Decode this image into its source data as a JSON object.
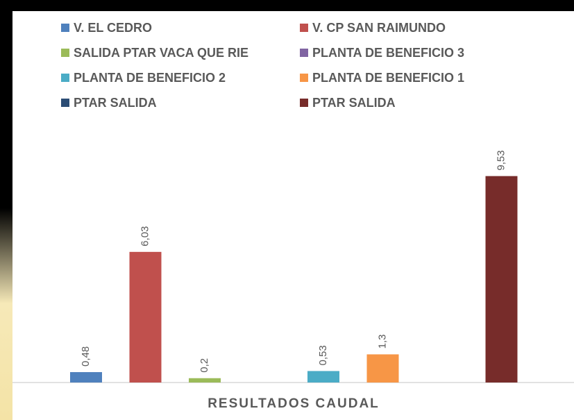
{
  "chart_data": {
    "type": "bar",
    "categories": [
      "RESULTADOS CAUDAL"
    ],
    "series": [
      {
        "name": "V. EL CEDRO",
        "color": "#4f81bd",
        "values": [
          0.48
        ],
        "value_labels": [
          "0,48"
        ]
      },
      {
        "name": "V. CP SAN RAIMUNDO",
        "color": "#c0504d",
        "values": [
          6.03
        ],
        "value_labels": [
          "6,03"
        ]
      },
      {
        "name": "SALIDA PTAR VACA QUE RIE",
        "color": "#9bbb59",
        "values": [
          0.2
        ],
        "value_labels": [
          "0,2"
        ]
      },
      {
        "name": "PLANTA DE BENEFICIO 3",
        "color": "#8064a2",
        "values": [
          null
        ],
        "value_labels": [
          null
        ]
      },
      {
        "name": "PLANTA DE BENEFICIO 2",
        "color": "#4bacc6",
        "values": [
          0.53
        ],
        "value_labels": [
          "0,53"
        ]
      },
      {
        "name": "PLANTA DE BENEFICIO 1",
        "color": "#f79646",
        "values": [
          1.3
        ],
        "value_labels": [
          "1,3"
        ]
      },
      {
        "name": "PTAR SALIDA",
        "color": "#2c4d75",
        "values": [
          null
        ],
        "value_labels": [
          null
        ]
      },
      {
        "name": "PTAR SALIDA",
        "color": "#772c2a",
        "values": [
          9.53
        ],
        "value_labels": [
          "9,53"
        ]
      }
    ],
    "ylim": [
      0,
      10.8
    ],
    "legend": "top"
  }
}
